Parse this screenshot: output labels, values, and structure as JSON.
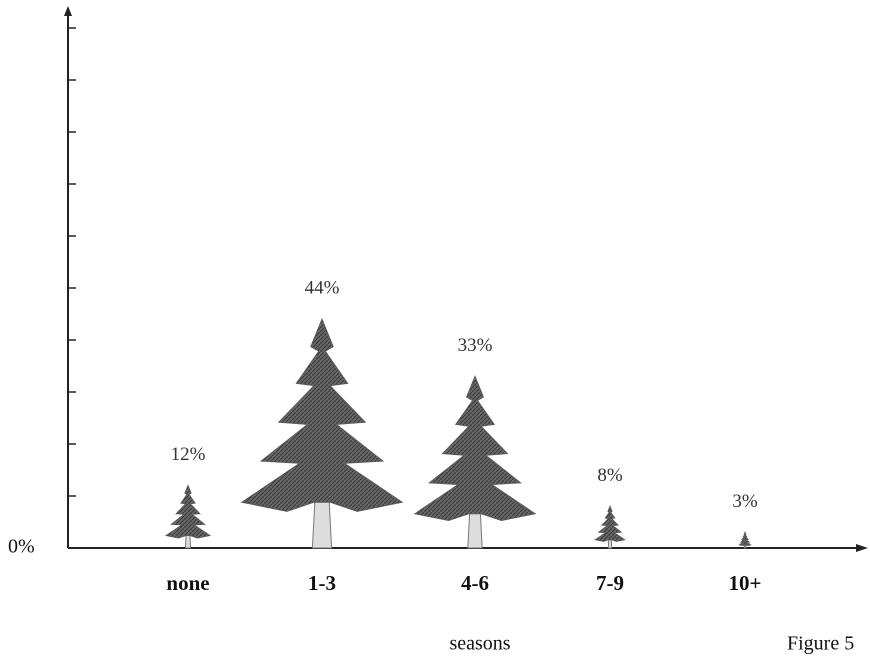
{
  "chart_data": {
    "type": "pictogram",
    "categories": [
      "none",
      "1-3",
      "4-6",
      "7-9",
      "10+"
    ],
    "values": [
      12,
      44,
      33,
      8,
      3
    ],
    "value_labels": [
      "12%",
      "44%",
      "33%",
      "8%",
      "3%"
    ],
    "color": "#5a5a5a",
    "ylim": [
      0,
      100
    ],
    "yticks": [
      {
        "value": 0,
        "label": "0%"
      }
    ],
    "minor_yticks": [
      10,
      20,
      30,
      40,
      50,
      60,
      70,
      80,
      90,
      100
    ],
    "x_label": "seasons",
    "caption": "Figure 5"
  }
}
